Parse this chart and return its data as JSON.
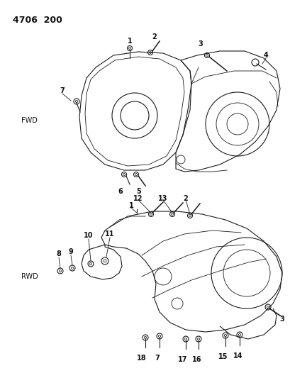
{
  "title": "4706  200",
  "background_color": "#ffffff",
  "fwd_label": "FWD",
  "rwd_label": "RWD",
  "fig_width": 4.1,
  "fig_height": 5.33,
  "dpi": 100,
  "line_color": "#1a1a1a",
  "label_color": "#111111"
}
